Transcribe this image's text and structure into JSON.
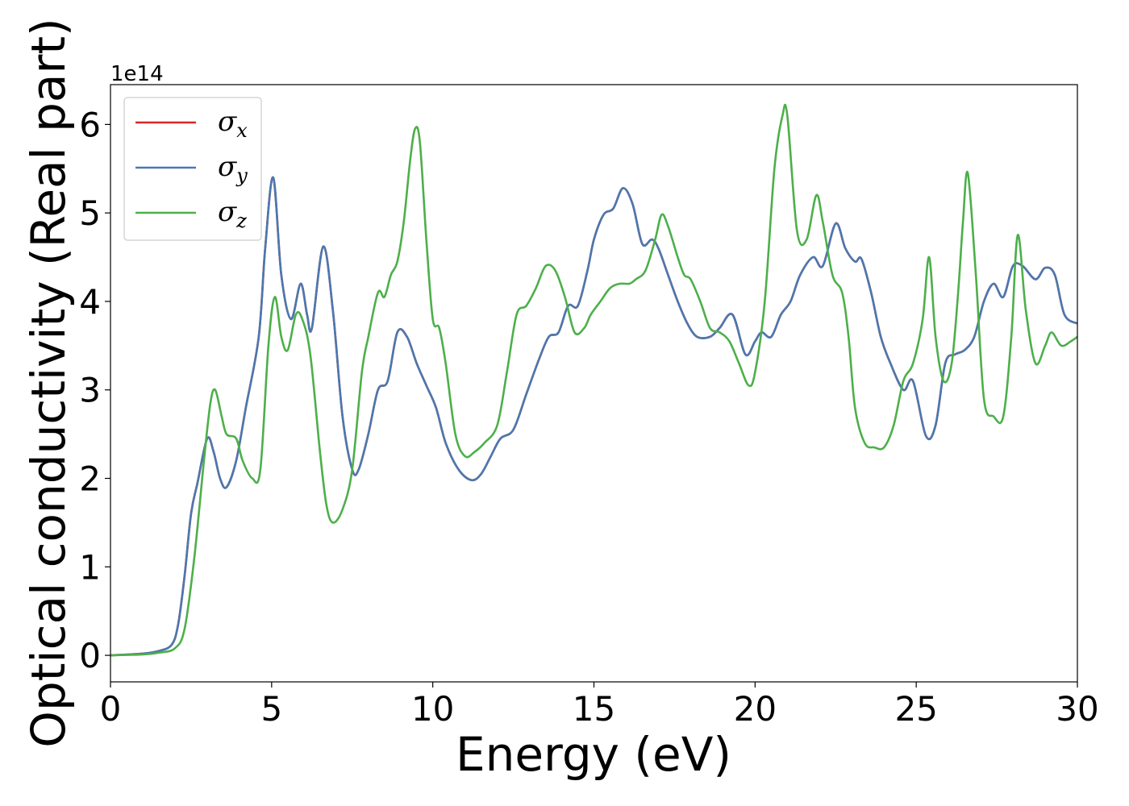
{
  "chart_data": {
    "type": "line",
    "title": "",
    "xlabel": "Energy (eV)",
    "ylabel": "Optical conductivity (Real part)",
    "y_offset_label": "1e14",
    "xlim": [
      0,
      30
    ],
    "ylim": [
      -0.3,
      6.45
    ],
    "x_ticks": [
      "0",
      "5",
      "10",
      "15",
      "20",
      "25",
      "30"
    ],
    "x_tick_values": [
      0,
      5,
      10,
      15,
      20,
      25,
      30
    ],
    "y_ticks": [
      "0",
      "1",
      "2",
      "3",
      "4",
      "5",
      "6"
    ],
    "y_tick_values": [
      0,
      1,
      2,
      3,
      4,
      5,
      6
    ],
    "grid": false,
    "legend_placement": "top-left",
    "legend": [
      {
        "symbol": "σ",
        "sub": "x",
        "color": "#d62728"
      },
      {
        "symbol": "σ",
        "sub": "y",
        "color": "#4a78b0"
      },
      {
        "symbol": "σ",
        "sub": "z",
        "color": "#4daf4a"
      }
    ],
    "series": [
      {
        "name": "σx",
        "color": "#d62728",
        "x": [
          0,
          1,
          1.5,
          1.9,
          2.1,
          2.3,
          2.5,
          2.7,
          3.0,
          3.2,
          3.4,
          3.6,
          3.9,
          4.2,
          4.6,
          4.8,
          5.05,
          5.3,
          5.6,
          5.9,
          6.1,
          6.25,
          6.6,
          6.9,
          7.2,
          7.5,
          7.7,
          8.0,
          8.3,
          8.6,
          8.9,
          9.2,
          9.5,
          9.8,
          10.1,
          10.4,
          10.8,
          11.2,
          11.5,
          11.8,
          12.1,
          12.5,
          12.9,
          13.3,
          13.6,
          13.9,
          14.2,
          14.5,
          14.8,
          15.0,
          15.3,
          15.6,
          15.9,
          16.2,
          16.5,
          16.8,
          17.0,
          17.3,
          17.6,
          17.9,
          18.2,
          18.6,
          18.9,
          19.3,
          19.7,
          20.0,
          20.2,
          20.5,
          20.8,
          21.1,
          21.4,
          21.8,
          22.1,
          22.5,
          22.8,
          23.1,
          23.3,
          23.6,
          23.9,
          24.2,
          24.6,
          24.9,
          25.3,
          25.6,
          25.9,
          26.2,
          26.5,
          26.8,
          27.1,
          27.4,
          27.7,
          28.0,
          28.3,
          28.7,
          29.0,
          29.3,
          29.6,
          30.0
        ],
        "values": [
          0,
          0.02,
          0.05,
          0.12,
          0.35,
          0.9,
          1.6,
          1.95,
          2.45,
          2.3,
          2.0,
          1.9,
          2.2,
          2.8,
          3.6,
          4.6,
          5.4,
          4.3,
          3.8,
          4.2,
          3.85,
          3.7,
          4.62,
          3.9,
          2.7,
          2.1,
          2.1,
          2.5,
          3.0,
          3.1,
          3.65,
          3.6,
          3.3,
          3.05,
          2.8,
          2.4,
          2.1,
          1.98,
          2.05,
          2.25,
          2.45,
          2.55,
          2.95,
          3.35,
          3.6,
          3.65,
          3.95,
          3.95,
          4.35,
          4.7,
          4.98,
          5.05,
          5.28,
          5.1,
          4.65,
          4.7,
          4.6,
          4.3,
          4.0,
          3.75,
          3.6,
          3.6,
          3.7,
          3.85,
          3.4,
          3.55,
          3.65,
          3.6,
          3.85,
          4.0,
          4.3,
          4.5,
          4.4,
          4.88,
          4.6,
          4.45,
          4.48,
          4.1,
          3.6,
          3.3,
          3.0,
          3.1,
          2.48,
          2.6,
          3.3,
          3.4,
          3.45,
          3.6,
          4.0,
          4.2,
          4.05,
          4.4,
          4.4,
          4.25,
          4.38,
          4.3,
          3.85,
          3.75
        ]
      },
      {
        "name": "σy",
        "color": "#4a78b0",
        "x": [
          0,
          1,
          1.5,
          1.9,
          2.1,
          2.3,
          2.5,
          2.7,
          3.0,
          3.2,
          3.4,
          3.6,
          3.9,
          4.2,
          4.6,
          4.8,
          5.05,
          5.3,
          5.6,
          5.9,
          6.1,
          6.25,
          6.6,
          6.9,
          7.2,
          7.5,
          7.7,
          8.0,
          8.3,
          8.6,
          8.9,
          9.2,
          9.5,
          9.8,
          10.1,
          10.4,
          10.8,
          11.2,
          11.5,
          11.8,
          12.1,
          12.5,
          12.9,
          13.3,
          13.6,
          13.9,
          14.2,
          14.5,
          14.8,
          15.0,
          15.3,
          15.6,
          15.9,
          16.2,
          16.5,
          16.8,
          17.0,
          17.3,
          17.6,
          17.9,
          18.2,
          18.6,
          18.9,
          19.3,
          19.7,
          20.0,
          20.2,
          20.5,
          20.8,
          21.1,
          21.4,
          21.8,
          22.1,
          22.5,
          22.8,
          23.1,
          23.3,
          23.6,
          23.9,
          24.2,
          24.6,
          24.9,
          25.3,
          25.6,
          25.9,
          26.2,
          26.5,
          26.8,
          27.1,
          27.4,
          27.7,
          28.0,
          28.3,
          28.7,
          29.0,
          29.3,
          29.6,
          30.0
        ],
        "values": [
          0,
          0.02,
          0.05,
          0.12,
          0.35,
          0.9,
          1.6,
          1.95,
          2.45,
          2.3,
          2.0,
          1.9,
          2.2,
          2.8,
          3.6,
          4.6,
          5.4,
          4.3,
          3.8,
          4.2,
          3.85,
          3.7,
          4.62,
          3.9,
          2.7,
          2.1,
          2.1,
          2.5,
          3.0,
          3.1,
          3.65,
          3.6,
          3.3,
          3.05,
          2.8,
          2.4,
          2.1,
          1.98,
          2.05,
          2.25,
          2.45,
          2.55,
          2.95,
          3.35,
          3.6,
          3.65,
          3.95,
          3.95,
          4.35,
          4.7,
          4.98,
          5.05,
          5.28,
          5.1,
          4.65,
          4.7,
          4.6,
          4.3,
          4.0,
          3.75,
          3.6,
          3.6,
          3.7,
          3.85,
          3.4,
          3.55,
          3.65,
          3.6,
          3.85,
          4.0,
          4.3,
          4.5,
          4.4,
          4.88,
          4.6,
          4.45,
          4.48,
          4.1,
          3.6,
          3.3,
          3.0,
          3.1,
          2.48,
          2.6,
          3.3,
          3.4,
          3.45,
          3.6,
          4.0,
          4.2,
          4.05,
          4.4,
          4.4,
          4.25,
          4.38,
          4.3,
          3.85,
          3.75
        ]
      },
      {
        "name": "σz",
        "color": "#4daf4a",
        "x": [
          0,
          1,
          1.5,
          2.0,
          2.3,
          2.6,
          2.9,
          3.1,
          3.25,
          3.45,
          3.6,
          3.9,
          4.1,
          4.4,
          4.65,
          4.9,
          5.1,
          5.3,
          5.5,
          5.75,
          5.95,
          6.2,
          6.5,
          6.7,
          6.9,
          7.2,
          7.5,
          7.8,
          8.0,
          8.3,
          8.5,
          8.7,
          8.9,
          9.1,
          9.3,
          9.45,
          9.6,
          9.8,
          10.0,
          10.2,
          10.4,
          10.7,
          11.0,
          11.3,
          11.6,
          12.0,
          12.3,
          12.6,
          12.9,
          13.2,
          13.5,
          13.8,
          14.1,
          14.4,
          14.7,
          14.9,
          15.2,
          15.5,
          15.8,
          16.1,
          16.3,
          16.6,
          16.9,
          17.1,
          17.3,
          17.6,
          17.8,
          18.0,
          18.3,
          18.6,
          18.9,
          19.2,
          19.5,
          19.8,
          20.0,
          20.3,
          20.6,
          20.85,
          21.0,
          21.3,
          21.6,
          21.9,
          22.1,
          22.4,
          22.7,
          22.9,
          23.1,
          23.4,
          23.7,
          24.0,
          24.3,
          24.6,
          24.9,
          25.2,
          25.4,
          25.6,
          25.85,
          26.1,
          26.3,
          26.45,
          26.6,
          26.85,
          27.1,
          27.4,
          27.7,
          27.95,
          28.15,
          28.4,
          28.7,
          29.0,
          29.2,
          29.5,
          29.8,
          30.0
        ],
        "values": [
          0,
          0.01,
          0.03,
          0.08,
          0.3,
          1.1,
          2.2,
          2.85,
          3.0,
          2.7,
          2.5,
          2.45,
          2.2,
          2.0,
          2.1,
          3.5,
          4.05,
          3.6,
          3.45,
          3.85,
          3.8,
          3.4,
          2.3,
          1.7,
          1.5,
          1.65,
          2.1,
          3.2,
          3.6,
          4.1,
          4.05,
          4.3,
          4.45,
          4.9,
          5.6,
          5.95,
          5.8,
          4.7,
          3.8,
          3.7,
          3.3,
          2.5,
          2.25,
          2.3,
          2.4,
          2.6,
          3.2,
          3.85,
          3.95,
          4.15,
          4.4,
          4.35,
          4.05,
          3.65,
          3.7,
          3.85,
          4.0,
          4.15,
          4.2,
          4.2,
          4.25,
          4.35,
          4.7,
          4.98,
          4.85,
          4.5,
          4.3,
          4.25,
          4.0,
          3.7,
          3.65,
          3.55,
          3.3,
          3.05,
          3.2,
          4.0,
          5.5,
          6.1,
          6.1,
          4.8,
          4.7,
          5.2,
          4.9,
          4.3,
          4.1,
          3.6,
          2.8,
          2.4,
          2.35,
          2.35,
          2.6,
          3.1,
          3.3,
          3.8,
          4.5,
          3.6,
          3.1,
          3.3,
          4.1,
          4.9,
          5.45,
          4.3,
          2.9,
          2.7,
          2.7,
          3.6,
          4.75,
          3.9,
          3.3,
          3.5,
          3.65,
          3.5,
          3.55,
          3.6
        ]
      }
    ]
  }
}
